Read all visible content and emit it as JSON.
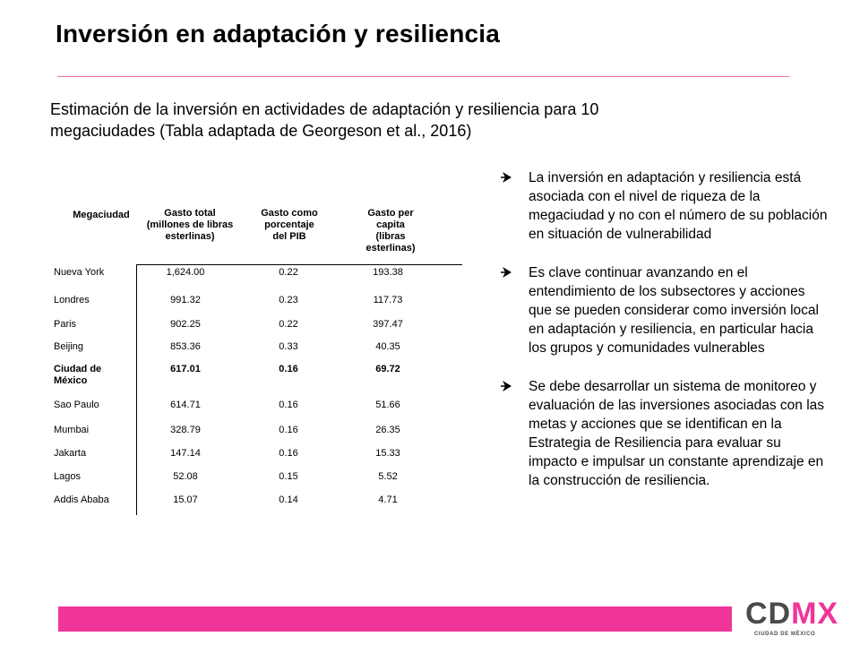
{
  "title": "Inversión en adaptación y resiliencia",
  "subtitle": {
    "line1": "Estimación de la inversión en actividades de adaptación y resiliencia para 10",
    "line2": "megaciudades (Tabla adaptada de Georgeson et al., 2016)"
  },
  "table": {
    "headers": {
      "megaciudad": "Megaciudad",
      "gasto_total": [
        "Gasto total",
        "(millones de libras",
        "esterlinas)"
      ],
      "porcentaje": [
        "Gasto como",
        "porcentaje",
        "del PIB"
      ],
      "per_capita": [
        "Gasto per",
        "capita",
        "(libras",
        "esterlinas)"
      ]
    },
    "rows": [
      {
        "name": [
          "Nueva York"
        ],
        "total": "1,624.00",
        "pib": "0.22",
        "capita": "193.38"
      },
      {
        "name": [
          "Londres"
        ],
        "total": "991.32",
        "pib": "0.23",
        "capita": "117.73"
      },
      {
        "name": [
          "Paris"
        ],
        "total": "902.25",
        "pib": "0.22",
        "capita": "397.47"
      },
      {
        "name": [
          "Beijing"
        ],
        "total": "853.36",
        "pib": "0.33",
        "capita": "40.35"
      },
      {
        "name": [
          "Ciudad de",
          "México"
        ],
        "total": "617.01",
        "pib": "0.16",
        "capita": "69.72"
      },
      {
        "name": [
          "Sao Paulo"
        ],
        "total": "614.71",
        "pib": "0.16",
        "capita": "51.66"
      },
      {
        "name": [
          "Mumbai"
        ],
        "total": "328.79",
        "pib": "0.16",
        "capita": "26.35"
      },
      {
        "name": [
          "Jakarta"
        ],
        "total": "147.14",
        "pib": "0.16",
        "capita": "15.33"
      },
      {
        "name": [
          "Lagos"
        ],
        "total": "52.08",
        "pib": "0.15",
        "capita": "5.52"
      },
      {
        "name": [
          "Addis Ababa"
        ],
        "total": "15.07",
        "pib": "0.14",
        "capita": "4.71"
      }
    ]
  },
  "bullets": [
    "La inversión en adaptación y resiliencia está asociada con el nivel de riqueza de la megaciudad y no con el número de su población en situación de vulnerabilidad",
    "Es clave continuar avanzando en el entendimiento de los subsectores y acciones que se pueden considerar como inversión local en adaptación y resiliencia, en particular hacia los grupos y comunidades vulnerables",
    "Se debe desarrollar un sistema de monitoreo y evaluación de las inversiones asociadas con las metas y acciones que se identifican en la Estrategia de Resiliencia para evaluar su impacto e impulsar un constante aprendizaje en la construcción de resiliencia."
  ],
  "logo": {
    "text_cd": "CD",
    "text_mx": "MX",
    "subtext": "CIUDAD DE MÉXICO"
  },
  "colors": {
    "accent_pink": "#f0359a",
    "rule_pink": "#e8769e",
    "logo_gray": "#4a4a4a"
  },
  "icons": {
    "bullet": "arrow-check-bullet-icon"
  }
}
